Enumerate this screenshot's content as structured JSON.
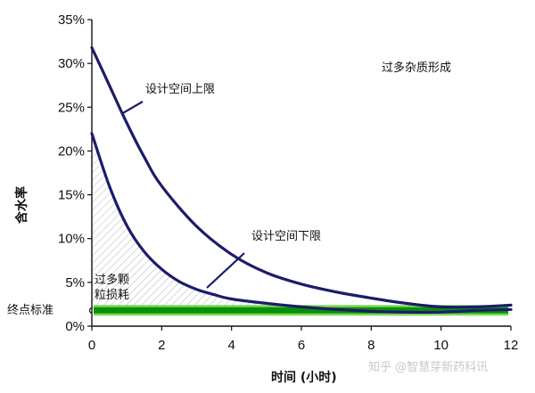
{
  "chart_data": {
    "type": "line",
    "xlabel": "时间 (小时)",
    "ylabel": "含水率",
    "xlim": [
      0,
      12
    ],
    "ylim": [
      0,
      35
    ],
    "x_ticks": [
      "0",
      "2",
      "4",
      "6",
      "8",
      "10",
      "12"
    ],
    "y_ticks": [
      "0%",
      "5%",
      "10%",
      "15%",
      "20%",
      "25%",
      "30%",
      "35%"
    ],
    "grid": false,
    "series": [
      {
        "name": "设计空间上限",
        "color": "#1c1c6b",
        "x": [
          0,
          0.5,
          1,
          1.5,
          2,
          3,
          4,
          5,
          6,
          7,
          8,
          9,
          10,
          11,
          12
        ],
        "y": [
          31.8,
          27.5,
          23.2,
          19.3,
          16,
          11.4,
          8.2,
          6.1,
          4.8,
          3.9,
          3.2,
          2.6,
          2.2,
          2.2,
          2.4
        ]
      },
      {
        "name": "设计空间下限",
        "color": "#1c1c6b",
        "x": [
          0,
          0.5,
          1,
          1.5,
          2,
          2.5,
          3,
          3.5,
          4,
          5,
          6,
          7,
          8,
          9,
          10,
          11,
          12
        ],
        "y": [
          22,
          16,
          11.5,
          8.5,
          6.5,
          5.1,
          4.2,
          3.6,
          3.1,
          2.6,
          2.2,
          1.9,
          1.7,
          1.6,
          1.6,
          1.8,
          1.9
        ]
      }
    ],
    "endpoint_standard": 1.8,
    "annotations": [
      "过多杂质形成",
      "设计空间上限",
      "设计空间下限",
      "过多颗",
      "粒损耗",
      "终点标准"
    ]
  },
  "watermark": "知乎 @智慧芽新药科讯"
}
